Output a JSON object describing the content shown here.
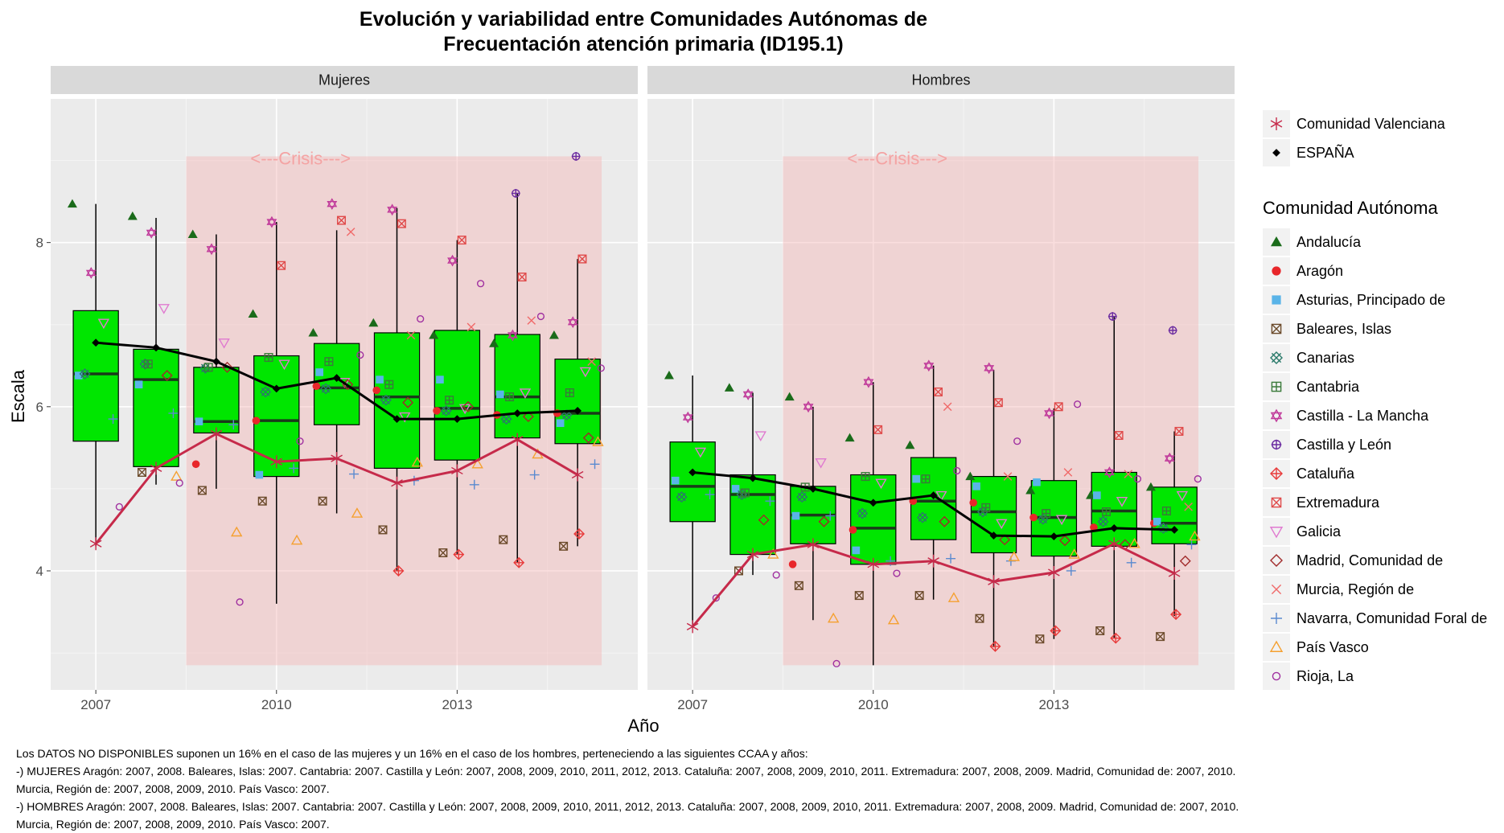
{
  "title_line1": "Evolución y variabilidad entre Comunidades Autónomas de",
  "title_line2": "Frecuentación atención primaria (ID195.1)",
  "xlabel": "Año",
  "ylabel": "Escala",
  "crisis_label": "<---Crisis--->",
  "legend_top": [
    {
      "name": "Comunidad Valenciana",
      "shape": "asterisk",
      "color": "#c62a4a"
    },
    {
      "name": "ESPAÑA",
      "shape": "diamond-filled",
      "color": "#000000"
    }
  ],
  "legend_title": "Comunidad Autónoma",
  "legend_items": [
    {
      "name": "Andalucía",
      "shape": "triangle-filled",
      "color": "#1a6b1a"
    },
    {
      "name": "Aragón",
      "shape": "circle-filled",
      "color": "#e8262a"
    },
    {
      "name": "Asturias, Principado de",
      "shape": "square-filled",
      "color": "#5ab4e8"
    },
    {
      "name": "Baleares, Islas",
      "shape": "square-x",
      "color": "#6b4a2a"
    },
    {
      "name": "Canarias",
      "shape": "square-x-diag",
      "color": "#2a7a6a"
    },
    {
      "name": "Cantabria",
      "shape": "square-plus",
      "color": "#3a7a3a"
    },
    {
      "name": "Castilla - La Mancha",
      "shape": "star-david",
      "color": "#c0399a"
    },
    {
      "name": "Castilla y León",
      "shape": "circle-plus",
      "color": "#6a2aa0"
    },
    {
      "name": "Cataluña",
      "shape": "diamond-plus",
      "color": "#e83a3a"
    },
    {
      "name": "Extremadura",
      "shape": "square-cross",
      "color": "#e04a4a"
    },
    {
      "name": "Galicia",
      "shape": "triangle-down",
      "color": "#e07ad0"
    },
    {
      "name": "Madrid, Comunidad de",
      "shape": "diamond",
      "color": "#a02a2a"
    },
    {
      "name": "Murcia, Región de",
      "shape": "cross",
      "color": "#f06a6a"
    },
    {
      "name": "Navarra, Comunidad Foral de",
      "shape": "plus",
      "color": "#5a8ad0"
    },
    {
      "name": "País Vasco",
      "shape": "triangle",
      "color": "#f5a030"
    },
    {
      "name": "Rioja, La",
      "shape": "circle",
      "color": "#a030a0"
    }
  ],
  "footnote": [
    "Los DATOS NO DISPONIBLES suponen un 16% en el caso de las mujeres y un 16% en el caso de los hombres, perteneciendo a las siguientes CCAA y años:",
    "-) MUJERES Aragón: 2007, 2008. Baleares, Islas: 2007. Cantabria: 2007. Castilla y León: 2007, 2008, 2009, 2010, 2011, 2012, 2013. Cataluña: 2007, 2008, 2009, 2010, 2011. Extremadura: 2007, 2008, 2009. Madrid, Comunidad de: 2007, 2010. Murcia, Región de: 2007, 2008, 2009, 2010. País Vasco: 2007.",
    "-) HOMBRES Aragón: 2007, 2008. Baleares, Islas: 2007. Cantabria: 2007. Castilla y León: 2007, 2008, 2009, 2010, 2011, 2012, 2013. Cataluña: 2007, 2008, 2009, 2010, 2011. Extremadura: 2007, 2008, 2009. Madrid, Comunidad de: 2007, 2010. Murcia, Región de: 2007, 2008, 2009, 2010. País Vasco: 2007."
  ],
  "chart_data": {
    "type": "box",
    "title": "Evolución y variabilidad entre Comunidades Autónomas de Frecuentación atención primaria (ID195.1)",
    "xlabel": "Año",
    "ylabel": "Escala",
    "x_ticks": [
      2007,
      2010,
      2013
    ],
    "y_ticks": [
      4,
      6,
      8
    ],
    "ylim": [
      2.55,
      9.75
    ],
    "xlim": [
      2006.25,
      2016.0
    ],
    "crisis_band": {
      "x_from": 2008.5,
      "x_to": 2015.4,
      "y_from": 2.85,
      "y_to": 9.05
    },
    "box_fill": "#00e600",
    "panels": [
      {
        "name": "Mujeres",
        "years": [
          2007,
          2008,
          2009,
          2010,
          2011,
          2012,
          2013,
          2014,
          2015
        ],
        "boxes": [
          {
            "year": 2007,
            "low": 4.3,
            "q1": 5.58,
            "median": 6.4,
            "q3": 7.17,
            "high": 8.47
          },
          {
            "year": 2008,
            "low": 5.05,
            "q1": 5.27,
            "median": 6.33,
            "q3": 6.7,
            "high": 8.3
          },
          {
            "year": 2009,
            "low": 5.0,
            "q1": 5.68,
            "median": 5.82,
            "q3": 6.48,
            "high": 8.1
          },
          {
            "year": 2010,
            "low": 3.6,
            "q1": 5.15,
            "median": 5.83,
            "q3": 6.62,
            "high": 8.25
          },
          {
            "year": 2011,
            "low": 4.7,
            "q1": 5.78,
            "median": 6.23,
            "q3": 6.77,
            "high": 8.15
          },
          {
            "year": 2012,
            "low": 4.0,
            "q1": 5.25,
            "median": 6.12,
            "q3": 6.9,
            "high": 8.42
          },
          {
            "year": 2013,
            "low": 4.2,
            "q1": 5.35,
            "median": 5.98,
            "q3": 6.93,
            "high": 8.03
          },
          {
            "year": 2014,
            "low": 4.1,
            "q1": 5.62,
            "median": 6.12,
            "q3": 6.88,
            "high": 8.6
          },
          {
            "year": 2015,
            "low": 4.3,
            "q1": 5.55,
            "median": 5.92,
            "q3": 6.58,
            "high": 7.8
          }
        ],
        "lines": [
          {
            "name": "ESPAÑA",
            "values": [
              6.78,
              6.72,
              6.55,
              6.22,
              6.35,
              5.85,
              5.85,
              5.92,
              5.95
            ]
          },
          {
            "name": "Comunidad Valenciana",
            "values": [
              4.33,
              5.25,
              5.67,
              5.33,
              5.37,
              5.07,
              5.22,
              5.6,
              5.17
            ]
          }
        ],
        "points": [
          {
            "ccaa": "Andalucía",
            "values": [
              8.47,
              8.32,
              8.1,
              7.13,
              6.9,
              7.02,
              6.87,
              6.77,
              6.87
            ]
          },
          {
            "ccaa": "Aragón",
            "values": [
              null,
              null,
              5.3,
              5.83,
              6.25,
              6.2,
              5.95,
              5.9,
              5.92
            ]
          },
          {
            "ccaa": "Asturias, Principado de",
            "values": [
              6.38,
              6.27,
              5.82,
              5.17,
              6.42,
              6.33,
              6.33,
              6.15,
              5.8
            ]
          },
          {
            "ccaa": "Baleares, Islas",
            "values": [
              null,
              5.2,
              4.98,
              4.85,
              4.85,
              4.5,
              4.22,
              4.38,
              4.3
            ]
          },
          {
            "ccaa": "Canarias",
            "values": [
              6.4,
              6.52,
              6.47,
              6.18,
              6.22,
              6.08,
              5.95,
              5.85,
              5.9
            ]
          },
          {
            "ccaa": "Cantabria",
            "values": [
              null,
              6.52,
              6.48,
              6.6,
              6.55,
              6.27,
              6.08,
              6.12,
              6.17
            ]
          },
          {
            "ccaa": "Castilla - La Mancha",
            "values": [
              7.63,
              8.12,
              7.92,
              8.25,
              8.47,
              8.4,
              7.78,
              6.87,
              7.03
            ]
          },
          {
            "ccaa": "Castilla y León",
            "values": [
              null,
              null,
              null,
              null,
              null,
              null,
              null,
              8.6,
              9.05
            ]
          },
          {
            "ccaa": "Cataluña",
            "values": [
              null,
              null,
              null,
              null,
              null,
              4.0,
              4.2,
              4.1,
              4.45
            ]
          },
          {
            "ccaa": "Extremadura",
            "values": [
              null,
              null,
              null,
              7.72,
              8.27,
              8.23,
              8.03,
              7.58,
              7.8
            ]
          },
          {
            "ccaa": "Galicia",
            "values": [
              7.02,
              7.2,
              6.78,
              6.52,
              6.3,
              5.88,
              5.98,
              6.17,
              6.43
            ]
          },
          {
            "ccaa": "Madrid, Comunidad de",
            "values": [
              null,
              6.38,
              6.48,
              null,
              6.27,
              6.05,
              6.0,
              5.88,
              5.62
            ]
          },
          {
            "ccaa": "Murcia, Región de",
            "values": [
              null,
              null,
              null,
              null,
              8.13,
              6.87,
              6.97,
              7.05,
              6.55
            ]
          },
          {
            "ccaa": "Navarra, Comunidad Foral de",
            "values": [
              5.85,
              5.92,
              5.78,
              5.25,
              5.18,
              5.1,
              5.05,
              5.17,
              5.3
            ]
          },
          {
            "ccaa": "País Vasco",
            "values": [
              null,
              5.15,
              4.47,
              4.37,
              4.7,
              5.32,
              5.3,
              5.42,
              5.57
            ]
          },
          {
            "ccaa": "Rioja, La",
            "values": [
              4.78,
              5.07,
              3.62,
              5.58,
              6.63,
              7.07,
              7.5,
              7.1,
              6.47
            ]
          }
        ]
      },
      {
        "name": "Hombres",
        "years": [
          2007,
          2008,
          2009,
          2010,
          2011,
          2012,
          2013,
          2014,
          2015
        ],
        "boxes": [
          {
            "year": 2007,
            "low": 3.33,
            "q1": 4.6,
            "median": 5.03,
            "q3": 5.57,
            "high": 6.38
          },
          {
            "year": 2008,
            "low": 3.95,
            "q1": 4.2,
            "median": 4.93,
            "q3": 5.17,
            "high": 6.17
          },
          {
            "year": 2009,
            "low": 3.4,
            "q1": 4.33,
            "median": 4.68,
            "q3": 5.03,
            "high": 6.0
          },
          {
            "year": 2010,
            "low": 2.85,
            "q1": 4.08,
            "median": 4.52,
            "q3": 5.17,
            "high": 6.3
          },
          {
            "year": 2011,
            "low": 3.65,
            "q1": 4.38,
            "median": 4.85,
            "q3": 5.38,
            "high": 6.5
          },
          {
            "year": 2012,
            "low": 3.07,
            "q1": 4.22,
            "median": 4.72,
            "q3": 5.15,
            "high": 6.45
          },
          {
            "year": 2013,
            "low": 3.17,
            "q1": 4.18,
            "median": 4.65,
            "q3": 5.1,
            "high": 5.98
          },
          {
            "year": 2014,
            "low": 3.18,
            "q1": 4.3,
            "median": 4.73,
            "q3": 5.2,
            "high": 7.1
          },
          {
            "year": 2015,
            "low": 3.45,
            "q1": 4.33,
            "median": 4.58,
            "q3": 5.02,
            "high": 5.7
          }
        ],
        "lines": [
          {
            "name": "ESPAÑA",
            "values": [
              5.2,
              5.13,
              5.0,
              4.83,
              4.92,
              4.43,
              4.42,
              4.52,
              4.5
            ]
          },
          {
            "name": "Comunidad Valenciana",
            "values": [
              3.32,
              4.2,
              4.32,
              4.08,
              4.12,
              3.87,
              3.98,
              4.33,
              3.97
            ]
          }
        ],
        "points": [
          {
            "ccaa": "Andalucía",
            "values": [
              6.38,
              6.23,
              6.12,
              5.62,
              5.53,
              5.15,
              4.98,
              4.92,
              5.02
            ]
          },
          {
            "ccaa": "Aragón",
            "values": [
              null,
              null,
              4.08,
              4.5,
              4.85,
              4.83,
              4.65,
              4.53,
              4.58
            ]
          },
          {
            "ccaa": "Asturias, Principado de",
            "values": [
              5.1,
              5.0,
              4.67,
              4.25,
              5.12,
              5.03,
              5.08,
              4.92,
              4.6
            ]
          },
          {
            "ccaa": "Baleares, Islas",
            "values": [
              null,
              4.0,
              3.82,
              3.7,
              3.7,
              3.42,
              3.17,
              3.27,
              3.2
            ]
          },
          {
            "ccaa": "Canarias",
            "values": [
              4.9,
              4.93,
              4.9,
              4.7,
              4.65,
              4.72,
              4.63,
              4.6,
              4.52
            ]
          },
          {
            "ccaa": "Cantabria",
            "values": [
              null,
              4.95,
              5.02,
              5.15,
              5.12,
              4.77,
              4.7,
              4.72,
              4.73
            ]
          },
          {
            "ccaa": "Castilla - La Mancha",
            "values": [
              5.87,
              6.15,
              6.0,
              6.3,
              6.5,
              6.47,
              5.92,
              5.2,
              5.37
            ]
          },
          {
            "ccaa": "Castilla y León",
            "values": [
              null,
              null,
              null,
              null,
              null,
              null,
              null,
              7.1,
              6.93
            ]
          },
          {
            "ccaa": "Cataluña",
            "values": [
              null,
              null,
              null,
              null,
              null,
              3.08,
              3.27,
              3.18,
              3.47
            ]
          },
          {
            "ccaa": "Extremadura",
            "values": [
              null,
              null,
              null,
              5.72,
              6.18,
              6.05,
              6.0,
              5.65,
              5.7
            ]
          },
          {
            "ccaa": "Galicia",
            "values": [
              5.45,
              5.65,
              5.32,
              5.07,
              4.92,
              4.58,
              4.63,
              4.85,
              4.92
            ]
          },
          {
            "ccaa": "Madrid, Comunidad de",
            "values": [
              null,
              4.62,
              4.6,
              null,
              4.6,
              4.38,
              4.37,
              4.32,
              4.12
            ]
          },
          {
            "ccaa": "Murcia, Región de",
            "values": [
              null,
              null,
              null,
              null,
              6.0,
              5.15,
              5.2,
              5.18,
              4.78
            ]
          },
          {
            "ccaa": "Navarra, Comunidad Foral de",
            "values": [
              4.93,
              4.85,
              4.67,
              4.12,
              4.15,
              4.12,
              4.0,
              4.1,
              4.32
            ]
          },
          {
            "ccaa": "País Vasco",
            "values": [
              null,
              4.2,
              3.42,
              3.4,
              3.67,
              4.17,
              4.2,
              4.33,
              4.42
            ]
          },
          {
            "ccaa": "Rioja, La",
            "values": [
              3.67,
              3.95,
              2.87,
              3.97,
              5.22,
              5.58,
              6.03,
              5.12,
              5.12
            ]
          }
        ]
      }
    ]
  }
}
